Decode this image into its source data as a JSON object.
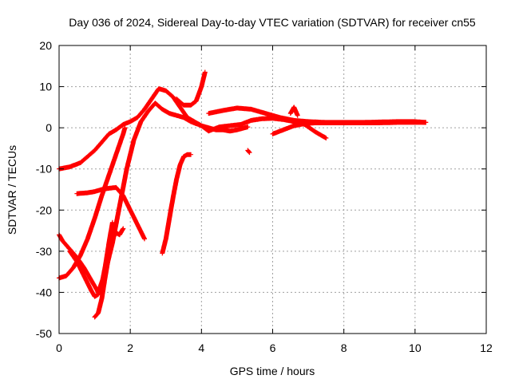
{
  "chart_data": {
    "type": "scatter",
    "title": "Day 036 of 2024, Sidereal Day-to-day VTEC variation (SDTVAR) for receiver cn55",
    "xlabel": "GPS time / hours",
    "ylabel": "SDTVAR / TECUs",
    "xlim": [
      0,
      12
    ],
    "ylim": [
      -50,
      20
    ],
    "xticks": [
      0,
      2,
      4,
      6,
      8,
      10,
      12
    ],
    "yticks": [
      -50,
      -40,
      -30,
      -20,
      -10,
      0,
      10,
      20
    ],
    "grid": true,
    "marker": "+",
    "color": "#ff0000",
    "series": [
      {
        "x": [
          0.0,
          0.3,
          0.6,
          0.8,
          1.0,
          1.2,
          1.4,
          1.6,
          1.8,
          2.0,
          2.2,
          2.4,
          2.6,
          2.8,
          3.0,
          3.2,
          3.4,
          3.6,
          3.8,
          4.0,
          4.2,
          4.4,
          4.6,
          4.8,
          5.0,
          5.3
        ],
        "y": [
          -10.0,
          -9.5,
          -8.5,
          -7.0,
          -5.5,
          -3.5,
          -1.5,
          -0.5,
          0.8,
          1.5,
          2.5,
          4.5,
          7.0,
          9.5,
          9.0,
          7.5,
          5.0,
          2.5,
          1.5,
          0.5,
          0.0,
          -0.5,
          -0.5,
          -0.8,
          -0.5,
          0.2
        ]
      },
      {
        "x": [
          0.0,
          0.1,
          0.3,
          0.5,
          0.7,
          0.9,
          1.1,
          1.3,
          1.5,
          1.7,
          1.9,
          2.1,
          2.3,
          2.5,
          2.7,
          2.9,
          3.1,
          3.3,
          3.5,
          3.7
        ],
        "y": [
          -26.0,
          -27.5,
          -29.5,
          -31.5,
          -34.0,
          -37.0,
          -40.0,
          -35.0,
          -28.0,
          -19.0,
          -10.0,
          -3.0,
          1.5,
          4.0,
          6.0,
          4.5,
          3.5,
          3.0,
          2.5,
          1.5
        ]
      },
      {
        "x": [
          0.0,
          0.2,
          0.4,
          0.6,
          0.8,
          1.0,
          1.2,
          1.4,
          1.6,
          1.8,
          1.85
        ],
        "y": [
          -36.5,
          -36.0,
          -34.0,
          -31.0,
          -27.0,
          -22.0,
          -16.5,
          -11.5,
          -6.5,
          -1.5,
          0.0
        ]
      },
      {
        "x": [
          0.5,
          0.8,
          1.0,
          1.2,
          1.4,
          1.6,
          1.8,
          2.0,
          2.2,
          2.4
        ],
        "y": [
          -16.0,
          -15.8,
          -15.5,
          -15.0,
          -14.7,
          -14.5,
          -16.5,
          -20.0,
          -23.5,
          -27.0
        ]
      },
      {
        "x": [
          0.3,
          0.5,
          0.7,
          0.9,
          1.0,
          1.1,
          1.2,
          1.3,
          1.4,
          1.5
        ],
        "y": [
          -30.0,
          -32.5,
          -36.0,
          -39.5,
          -41.0,
          -40.5,
          -38.0,
          -33.5,
          -28.0,
          -23.0
        ]
      },
      {
        "x": [
          1.0,
          1.1,
          1.2,
          1.3,
          1.4,
          1.5,
          1.6,
          1.7,
          1.8
        ],
        "y": [
          -46.0,
          -45.0,
          -41.5,
          -36.0,
          -31.0,
          -27.0,
          -25.5,
          -26.0,
          -24.5
        ]
      },
      {
        "x": [
          2.9,
          3.0,
          3.1,
          3.2,
          3.3,
          3.4,
          3.5,
          3.6,
          3.7
        ],
        "y": [
          -30.5,
          -27.0,
          -22.0,
          -17.0,
          -12.5,
          -9.0,
          -7.0,
          -6.5,
          -6.5
        ]
      },
      {
        "x": [
          3.3,
          3.5,
          3.7,
          3.85,
          4.0,
          4.1
        ],
        "y": [
          7.0,
          5.5,
          5.5,
          6.5,
          10.0,
          13.5
        ]
      },
      {
        "x": [
          3.7,
          4.0,
          4.2,
          4.5,
          4.8,
          5.1,
          5.4,
          5.7,
          6.0,
          6.3,
          6.6,
          6.9,
          7.2,
          7.5
        ],
        "y": [
          1.5,
          0.5,
          -0.8,
          0.2,
          0.5,
          0.8,
          1.8,
          2.2,
          2.3,
          2.0,
          1.5,
          0.8,
          -1.0,
          -2.5
        ]
      },
      {
        "x": [
          4.2,
          4.6,
          5.0,
          5.4,
          5.8,
          6.2,
          6.6,
          7.0,
          7.5,
          8.0,
          8.5,
          9.0,
          9.5,
          10.0,
          10.3
        ],
        "y": [
          3.5,
          4.2,
          4.8,
          4.5,
          3.5,
          2.5,
          1.8,
          1.5,
          1.3,
          1.3,
          1.3,
          1.4,
          1.5,
          1.5,
          1.3
        ]
      },
      {
        "x": [
          5.3,
          5.35
        ],
        "y": [
          -5.5,
          -6.0
        ]
      },
      {
        "x": [
          6.0,
          6.3,
          6.6,
          6.9,
          7.2,
          7.5,
          8.0,
          8.5,
          9.0,
          9.5,
          10.0,
          10.3
        ],
        "y": [
          -1.5,
          -0.5,
          0.5,
          1.0,
          1.2,
          1.2,
          1.2,
          1.2,
          1.2,
          1.3,
          1.3,
          1.3
        ]
      },
      {
        "x": [
          6.5,
          6.6,
          6.7
        ],
        "y": [
          3.5,
          5.0,
          3.0
        ]
      }
    ]
  }
}
